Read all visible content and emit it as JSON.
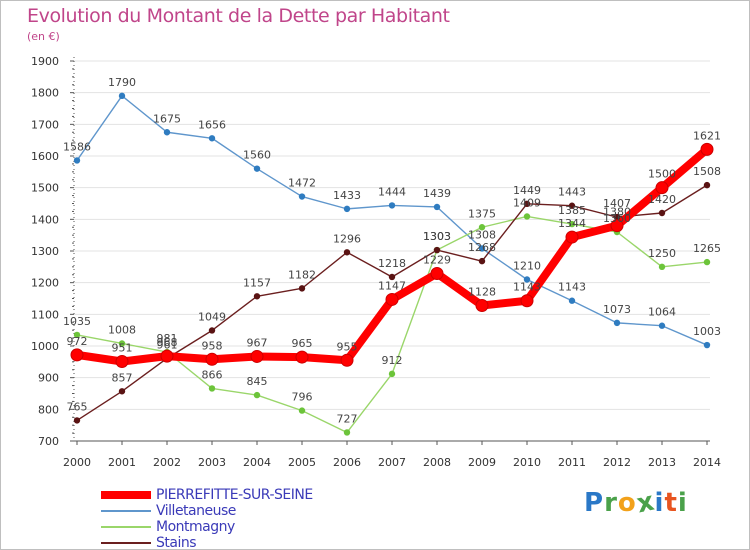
{
  "colors": {
    "title": "#c0458a",
    "legend_text": "#3a3ab8",
    "axis": "#555555",
    "grid": "#e3e3e3",
    "series": [
      "#ff0000",
      "#5f96cc",
      "#9ad66a",
      "#6b1f1f"
    ],
    "markers": [
      "#ff0000",
      "#2f7cc0",
      "#6cc43a",
      "#5a1313"
    ]
  },
  "chart_data": {
    "type": "line",
    "title": "Evolution du Montant de la Dette par Habitant",
    "subtitle": "(en €)",
    "xlabel": "",
    "ylabel": "",
    "ylim": [
      700,
      1900
    ],
    "y_ticks": [
      700,
      800,
      900,
      1000,
      1100,
      1200,
      1300,
      1400,
      1500,
      1600,
      1700,
      1800,
      1900
    ],
    "x": [
      "2000",
      "2001",
      "2002",
      "2003",
      "2004",
      "2005",
      "2006",
      "2007",
      "2008",
      "2009",
      "2010",
      "2011",
      "2012",
      "2013",
      "2014"
    ],
    "grid": true,
    "legend_position": "bottom-left",
    "series": [
      {
        "name": "PIERREFITTE-SUR-SEINE",
        "values": [
          972,
          951,
          968,
          958,
          967,
          965,
          955,
          1147,
          1229,
          1128,
          1143,
          1344,
          1380,
          1500,
          1621
        ]
      },
      {
        "name": "Villetaneuse",
        "values": [
          1586,
          1790,
          1675,
          1656,
          1560,
          1472,
          1433,
          1444,
          1439,
          1308,
          1210,
          1143,
          1073,
          1064,
          1003
        ]
      },
      {
        "name": "Montmagny",
        "values": [
          1035,
          1008,
          981,
          866,
          845,
          796,
          727,
          912,
          1303,
          1375,
          1409,
          1385,
          1360,
          1250,
          1265
        ]
      },
      {
        "name": "Stains",
        "values": [
          765,
          857,
          961,
          1049,
          1157,
          1182,
          1296,
          1218,
          1303,
          1268,
          1449,
          1443,
          1407,
          1420,
          1508
        ]
      }
    ]
  },
  "watermark": {
    "letters": [
      "P",
      "r",
      "o",
      "x",
      "i",
      "t",
      "i"
    ],
    "colors": [
      "#2a78c7",
      "#4aa14a",
      "#f2a11a",
      "#4aa14a",
      "#2a78c7",
      "#e8541f",
      "#4aa14a"
    ]
  }
}
